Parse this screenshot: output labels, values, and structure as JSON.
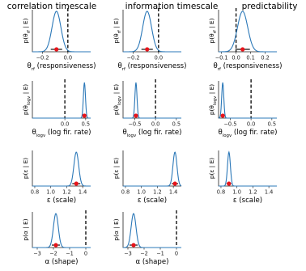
{
  "chart_data": {
    "type": "line",
    "column_titles": [
      "correlation timescale",
      "information timescale",
      "predictability"
    ],
    "rows": [
      {
        "id": "theta_rf",
        "ylabel": "p(θ_rf | E)",
        "xlabel": "θ_rf (responsiveness)",
        "xlim": [
          -0.28,
          0.18
        ],
        "xticks": [
          -0.2,
          0.0
        ],
        "zero_line": 0.0,
        "panels": [
          {
            "mean": -0.09,
            "sd": 0.035,
            "ci": [
              -0.135,
              -0.045
            ],
            "xlim": [
              -0.28,
              0.18
            ],
            "xticks": [
              -0.2,
              0.0
            ]
          },
          {
            "mean": -0.09,
            "sd": 0.035,
            "ci": [
              -0.135,
              -0.045
            ],
            "xlim": [
              -0.28,
              0.18
            ],
            "xticks": [
              -0.2,
              0.0
            ]
          },
          {
            "mean": 0.045,
            "sd": 0.035,
            "ci": [
              -0.005,
              0.095
            ],
            "xlim": [
              -0.12,
              0.28
            ],
            "xticks": [
              -0.1,
              0.0,
              0.1,
              0.2
            ]
          }
        ]
      },
      {
        "id": "theta_logv",
        "ylabel": "p(θ_logv | E)",
        "xlabel": "θ_logv (log fir. rate)",
        "zero_line": 0.0,
        "panels": [
          {
            "mean": 0.47,
            "sd": 0.025,
            "ci": [
              0.44,
              0.5
            ],
            "xlim": [
              -0.78,
              0.62
            ],
            "xticks": [
              0.0,
              0.5
            ]
          },
          {
            "mean": -0.47,
            "sd": 0.025,
            "ci": [
              -0.5,
              -0.44
            ],
            "xlim": [
              -0.78,
              0.62
            ],
            "xticks": [
              -0.5,
              0.0,
              0.5
            ]
          },
          {
            "mean": -0.68,
            "sd": 0.025,
            "ci": [
              -0.71,
              -0.65
            ],
            "xlim": [
              -0.78,
              0.62
            ],
            "xticks": [
              -0.5,
              0.0,
              0.5
            ]
          }
        ]
      },
      {
        "id": "epsilon",
        "ylabel": "p(ε | E)",
        "xlabel": "ε (scale)",
        "panels": [
          {
            "mean": 1.32,
            "sd": 0.03,
            "ci": [
              1.27,
              1.37
            ],
            "xlim": [
              0.77,
              1.5
            ],
            "xticks": [
              0.8,
              1.0,
              1.2,
              1.4
            ]
          },
          {
            "mean": 1.42,
            "sd": 0.025,
            "ci": [
              1.38,
              1.46
            ],
            "xlim": [
              0.77,
              1.5
            ],
            "xticks": [
              0.8,
              1.0,
              1.2,
              1.4
            ]
          },
          {
            "mean": 0.9,
            "sd": 0.018,
            "ci": [
              0.87,
              0.93
            ],
            "xlim": [
              0.77,
              1.5
            ],
            "xticks": [
              0.8,
              1.0,
              1.2,
              1.4
            ]
          }
        ]
      },
      {
        "id": "alpha",
        "ylabel": "p(α | E)",
        "xlabel": "α (shape)",
        "zero_line": 0.0,
        "panels": [
          {
            "mean": -1.85,
            "sd": 0.15,
            "ci": [
              -2.1,
              -1.6
            ],
            "xlim": [
              -3.3,
              0.3
            ],
            "xticks": [
              -3,
              -2,
              -1,
              0
            ]
          },
          {
            "mean": -2.65,
            "sd": 0.15,
            "ci": [
              -2.9,
              -2.4
            ],
            "xlim": [
              -3.3,
              0.3
            ],
            "xticks": [
              -3,
              -2,
              -1,
              0
            ]
          }
        ]
      }
    ],
    "legend": "none",
    "grid": false
  }
}
